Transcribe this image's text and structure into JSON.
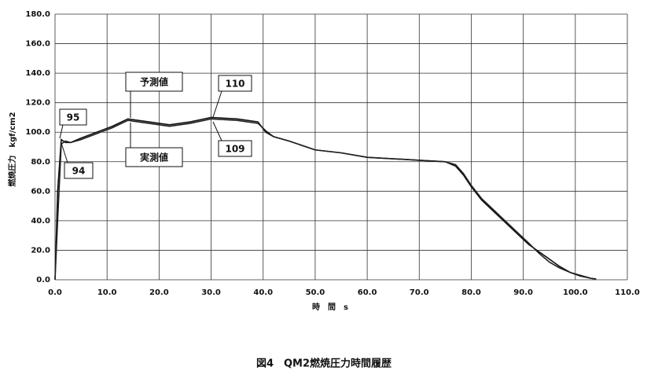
{
  "chart_data": {
    "type": "line",
    "title": "図4　QM2燃焼圧力時間履歴",
    "xlabel": "時　間　s",
    "ylabel": "燃焼圧力　kgf/cm2",
    "x": [
      0,
      0.5,
      1.2,
      2,
      3,
      5,
      8,
      11,
      14,
      18,
      22,
      26,
      30,
      35,
      39,
      40.5,
      42,
      45,
      50,
      55,
      60,
      65,
      70,
      75,
      77,
      78.5,
      80,
      82,
      85,
      88,
      91,
      93,
      95,
      97,
      99,
      101,
      103,
      104
    ],
    "series": [
      {
        "name": "予測値",
        "color": "#111111",
        "values": [
          0,
          60,
          95,
          93,
          93,
          96,
          100,
          104,
          109,
          107,
          105,
          107,
          110,
          109,
          107,
          100,
          97,
          94,
          88,
          86,
          83,
          82,
          81,
          80,
          77,
          71,
          63,
          54,
          44,
          34,
          24,
          19,
          14,
          9,
          5,
          2.5,
          1,
          0.5
        ]
      },
      {
        "name": "実測値",
        "color": "#222222",
        "values": [
          0,
          40,
          92,
          94,
          93,
          95,
          99,
          103,
          108,
          106,
          104,
          106,
          109,
          108,
          106,
          101,
          97,
          94,
          88,
          86,
          83,
          82,
          81,
          80,
          78,
          72,
          64,
          55,
          45,
          35,
          25,
          18,
          12,
          8,
          5,
          3,
          1,
          0.5
        ]
      }
    ],
    "annotations": [
      "95",
      "94",
      "110",
      "109"
    ],
    "xlim": [
      0,
      110
    ],
    "ylim": [
      0,
      180
    ],
    "xticks": [
      {
        "value": 0,
        "label": "0.0"
      },
      {
        "value": 10,
        "label": "10.0"
      },
      {
        "value": 20,
        "label": "20.0"
      },
      {
        "value": 30,
        "label": "30.0"
      },
      {
        "value": 40,
        "label": "40.0"
      },
      {
        "value": 50,
        "label": "50.0"
      },
      {
        "value": 60,
        "label": "60.0"
      },
      {
        "value": 70,
        "label": "70.0"
      },
      {
        "value": 80,
        "label": "80.0"
      },
      {
        "value": 90,
        "label": "90.0"
      },
      {
        "value": 100,
        "label": "100.0"
      },
      {
        "value": 110,
        "label": "110.0"
      }
    ],
    "yticks": [
      {
        "value": 0,
        "label": "0.0"
      },
      {
        "value": 20,
        "label": "20.0"
      },
      {
        "value": 40,
        "label": "40.0"
      },
      {
        "value": 60,
        "label": "60.0"
      },
      {
        "value": 80,
        "label": "80.0"
      },
      {
        "value": 100,
        "label": "100.0"
      },
      {
        "value": 120,
        "label": "120.0"
      },
      {
        "value": 140,
        "label": "140.0"
      },
      {
        "value": 160,
        "label": "160.0"
      },
      {
        "value": 180,
        "label": "180.0"
      }
    ],
    "grid": true
  }
}
